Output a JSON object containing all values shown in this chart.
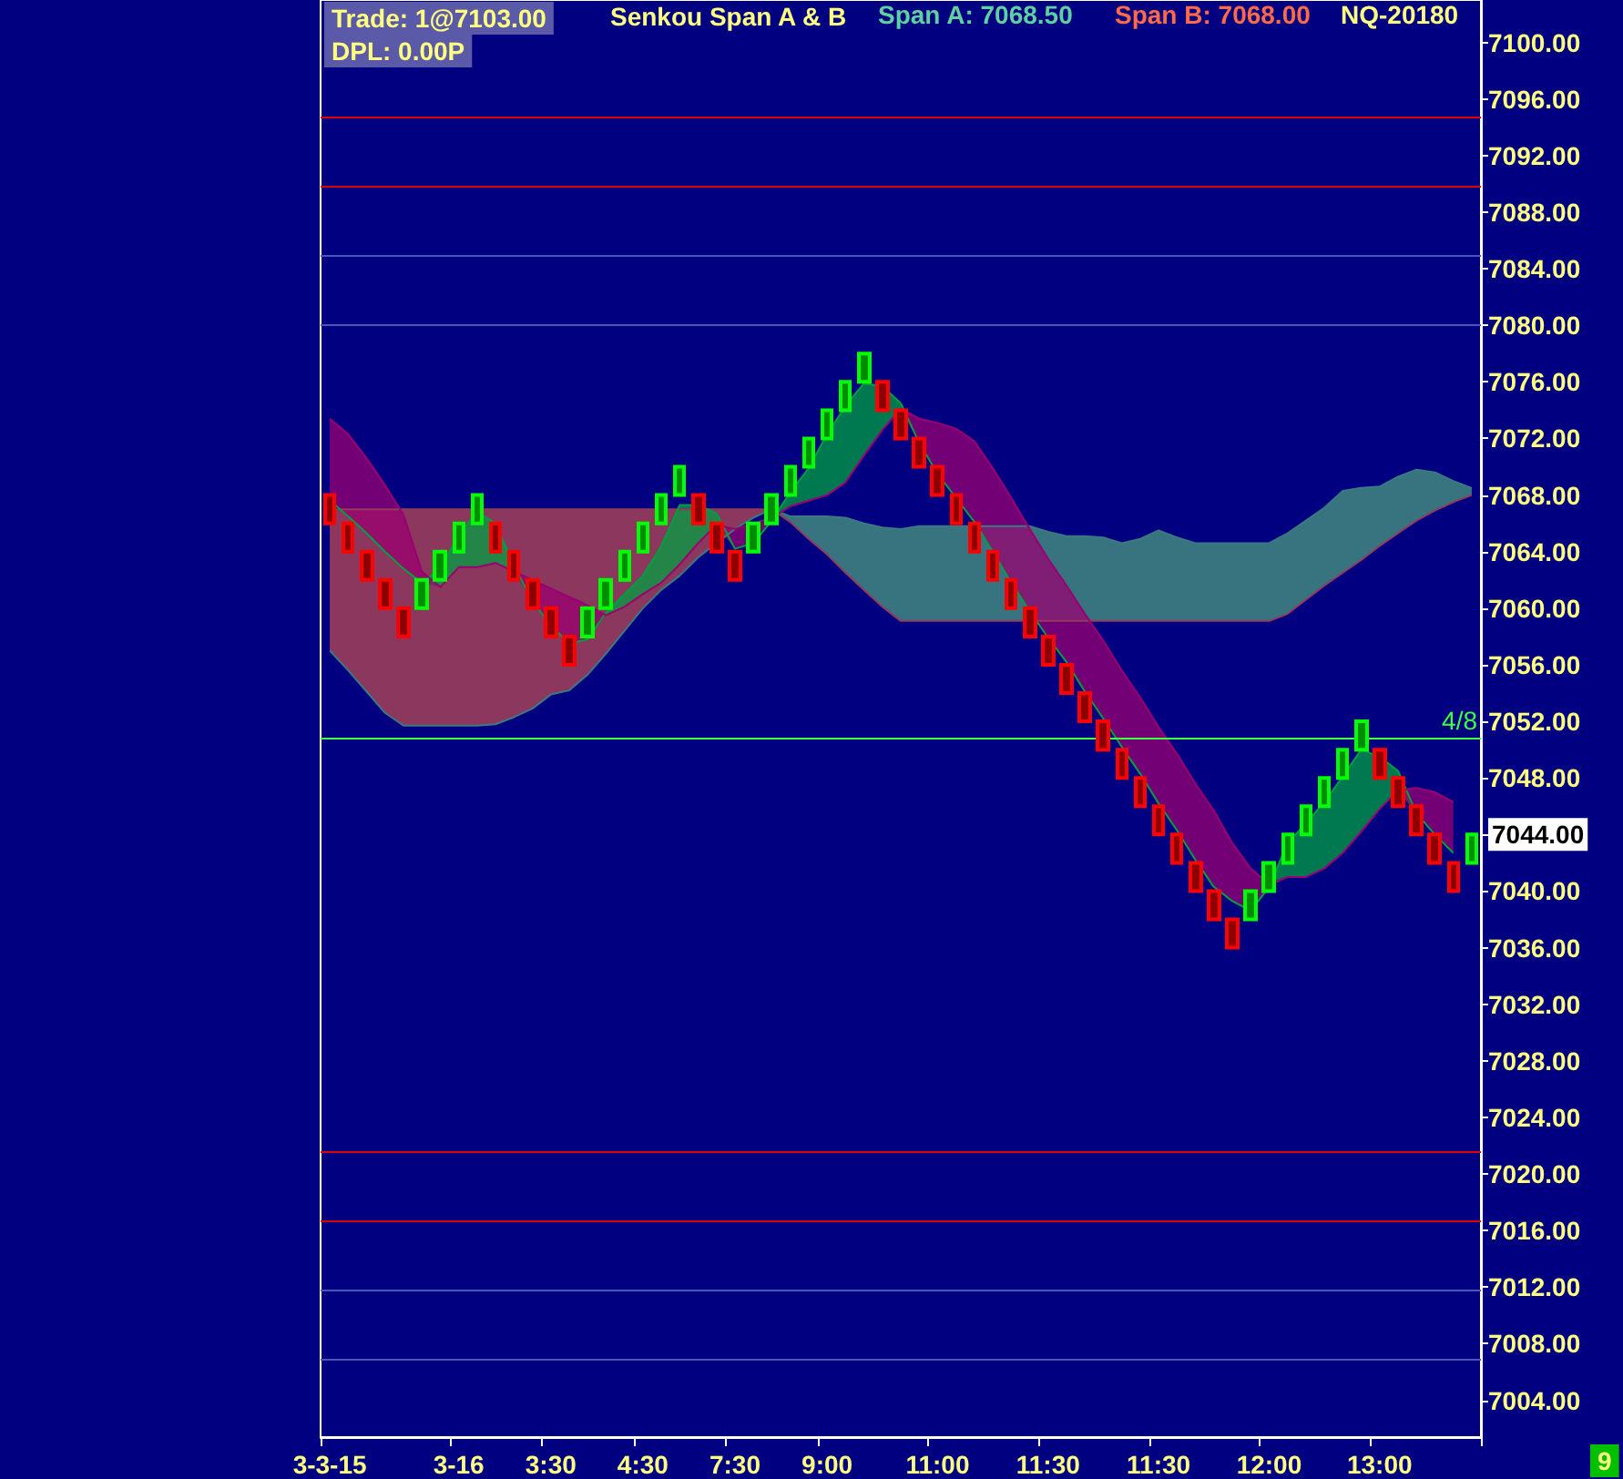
{
  "chart_data": {
    "type": "candlestick",
    "title": "Senkou Span A & B",
    "annotations": [
      "Trade: 1@7103.00",
      "DPL: 0.00P",
      "Span A: 7068.50",
      "Span B: 7068.00",
      "NQ-20180",
      "9",
      {
        "text": "4/8",
        "y": 7050.8
      }
    ],
    "categories": [
      "3-3-15",
      null,
      null,
      null,
      null,
      null,
      null,
      "3-16",
      null,
      null,
      null,
      null,
      "3:30",
      null,
      null,
      null,
      null,
      "4:30",
      null,
      null,
      null,
      null,
      "7:30",
      null,
      null,
      null,
      null,
      "9:00",
      null,
      null,
      null,
      null,
      null,
      "11:00",
      null,
      null,
      null,
      null,
      null,
      "11:30",
      null,
      null,
      null,
      null,
      null,
      "11:30",
      null,
      null,
      null,
      null,
      null,
      "12:00",
      null,
      null,
      null,
      null,
      null,
      "13:00",
      null,
      null,
      null,
      null,
      null
    ],
    "ohlc": [
      [
        7068,
        7068,
        7066,
        7066
      ],
      [
        7066,
        7066,
        7064,
        7064
      ],
      [
        7064,
        7064,
        7062,
        7062
      ],
      [
        7062,
        7062,
        7060,
        7060
      ],
      [
        7060,
        7060,
        7058,
        7058
      ],
      [
        7060,
        7062,
        7060,
        7062
      ],
      [
        7062,
        7064,
        7062,
        7064
      ],
      [
        7064,
        7066,
        7064,
        7066
      ],
      [
        7066,
        7068,
        7066,
        7068
      ],
      [
        7066,
        7066,
        7064,
        7064
      ],
      [
        7064,
        7064,
        7062,
        7062
      ],
      [
        7062,
        7062,
        7060,
        7060
      ],
      [
        7060,
        7060,
        7058,
        7058
      ],
      [
        7058,
        7058,
        7056,
        7056
      ],
      [
        7058,
        7060,
        7058,
        7060
      ],
      [
        7060,
        7062,
        7060,
        7062
      ],
      [
        7062,
        7064,
        7062,
        7064
      ],
      [
        7064,
        7066,
        7064,
        7066
      ],
      [
        7066,
        7068,
        7066,
        7068
      ],
      [
        7068,
        7070,
        7068,
        7070
      ],
      [
        7068,
        7068,
        7066,
        7066
      ],
      [
        7066,
        7066,
        7064,
        7064
      ],
      [
        7064,
        7064,
        7062,
        7062
      ],
      [
        7064,
        7066,
        7064,
        7066
      ],
      [
        7066,
        7068,
        7066,
        7068
      ],
      [
        7068,
        7070,
        7068,
        7070
      ],
      [
        7070,
        7072,
        7070,
        7072
      ],
      [
        7072,
        7074,
        7072,
        7074
      ],
      [
        7074,
        7076,
        7074,
        7076
      ],
      [
        7076,
        7078,
        7076,
        7078
      ],
      [
        7076,
        7076,
        7074,
        7074
      ],
      [
        7074,
        7074,
        7072,
        7072
      ],
      [
        7072,
        7072,
        7070,
        7070
      ],
      [
        7070,
        7070,
        7068,
        7068
      ],
      [
        7068,
        7068,
        7066,
        7066
      ],
      [
        7066,
        7066,
        7064,
        7064
      ],
      [
        7064,
        7064,
        7062,
        7062
      ],
      [
        7062,
        7062,
        7060,
        7060
      ],
      [
        7060,
        7060,
        7058,
        7058
      ],
      [
        7058,
        7058,
        7056,
        7056
      ],
      [
        7056,
        7056,
        7054,
        7054
      ],
      [
        7054,
        7054,
        7052,
        7052
      ],
      [
        7052,
        7052,
        7050,
        7050
      ],
      [
        7050,
        7050,
        7048,
        7048
      ],
      [
        7048,
        7048,
        7046,
        7046
      ],
      [
        7046,
        7046,
        7044,
        7044
      ],
      [
        7044,
        7044,
        7042,
        7042
      ],
      [
        7042,
        7042,
        7040,
        7040
      ],
      [
        7040,
        7040,
        7038,
        7038
      ],
      [
        7038,
        7038,
        7036,
        7036
      ],
      [
        7038,
        7040,
        7038,
        7040
      ],
      [
        7040,
        7042,
        7040,
        7042
      ],
      [
        7042,
        7044,
        7042,
        7044
      ],
      [
        7044,
        7046,
        7044,
        7046
      ],
      [
        7046,
        7048,
        7046,
        7048
      ],
      [
        7048,
        7050,
        7048,
        7050
      ],
      [
        7050,
        7052,
        7050,
        7052
      ],
      [
        7050,
        7050,
        7048,
        7048
      ],
      [
        7048,
        7048,
        7046,
        7046
      ],
      [
        7046,
        7046,
        7044,
        7044
      ],
      [
        7044,
        7044,
        7042,
        7042
      ],
      [
        7042,
        7042,
        7040,
        7040
      ],
      [
        7042,
        7044,
        7042,
        7044
      ]
    ],
    "colors": [
      "#ff0000",
      "#ff0000",
      "#ff0000",
      "#ff0000",
      "#ff0000",
      "#00ff00",
      "#00ff00",
      "#00ff00",
      "#00ff00",
      "#ff0000",
      "#ff0000",
      "#ff0000",
      "#ff0000",
      "#ff0000",
      "#00ff00",
      "#00ff00",
      "#00ff00",
      "#00ff00",
      "#00ff00",
      "#00ff00",
      "#ff0000",
      "#ff0000",
      "#ff0000",
      "#00ff00",
      "#00ff00",
      "#00ff00",
      "#00ff00",
      "#00ff00",
      "#00ff00",
      "#00ff00",
      "#ff0000",
      "#ff0000",
      "#ff0000",
      "#ff0000",
      "#ff0000",
      "#ff0000",
      "#ff0000",
      "#ff0000",
      "#ff0000",
      "#ff0000",
      "#ff0000",
      "#ff0000",
      "#ff0000",
      "#ff0000",
      "#ff0000",
      "#ff0000",
      "#ff0000",
      "#ff0000",
      "#ff0000",
      "#ff0000",
      "#00ff00",
      "#00ff00",
      "#00ff00",
      "#00ff00",
      "#00ff00",
      "#00ff00",
      "#00ff00",
      "#ff0000",
      "#ff0000",
      "#ff0000",
      "#ff0000",
      "#ff0000",
      "#00ff00"
    ],
    "series": [
      {
        "type": "area",
        "color": "#3a7a80",
        "values": [
          7057.0,
          7055.6,
          7054.1,
          7052.6,
          7051.7,
          7051.7,
          7051.7,
          7051.7,
          7051.7,
          7051.8,
          7052.3,
          7052.9,
          7053.9,
          7054.2,
          7055.3,
          7056.8,
          7058.4,
          7060.0,
          7061.3,
          7062.3,
          7063.6,
          7064.6,
          7065.6,
          7066.4,
          7067.0,
          7066.5,
          7066.5,
          7066.5,
          7066.4,
          7066.0,
          7065.7,
          7065.6,
          7065.8,
          7065.8,
          7065.8,
          7065.8,
          7065.8,
          7065.8,
          7065.8,
          7065.4,
          7065.1,
          7065.1,
          7065.0,
          7064.6,
          7064.9,
          7065.5,
          7065.0,
          7064.6,
          7064.6,
          7064.6,
          7064.6,
          7064.6,
          7065.3,
          7066.2,
          7067.1,
          7068.3,
          7068.5,
          7068.6,
          7069.3,
          7069.8,
          7069.6,
          7069.0,
          7068.5
        ]
      },
      {
        "type": "area",
        "color": "#943a5c",
        "values": [
          7067,
          7067,
          7067,
          7067,
          7067,
          7067,
          7067,
          7067,
          7067,
          7067,
          7067,
          7067,
          7067,
          7067,
          7067,
          7067,
          7067,
          7067,
          7067,
          7067,
          7067,
          7067,
          7067,
          7067,
          7067,
          7066.1,
          7064.9,
          7063.8,
          7062.5,
          7061.3,
          7060.1,
          7059.1,
          7059.1,
          7059.1,
          7059.1,
          7059.1,
          7059.1,
          7059.1,
          7059.1,
          7059.1,
          7059.1,
          7059.1,
          7059.1,
          7059.1,
          7059.1,
          7059.1,
          7059.1,
          7059.1,
          7059.1,
          7059.1,
          7059.1,
          7059.1,
          7059.6,
          7060.6,
          7061.6,
          7062.5,
          7063.4,
          7064.4,
          7065.3,
          7066.2,
          7066.9,
          7067.5,
          7068.0
        ]
      },
      {
        "type": "area",
        "color": "#00a040",
        "values": [
          7067.6,
          7066.5,
          7065.3,
          7064.0,
          7062.8,
          7061.8,
          7062.8,
          7065.2,
          7066.8,
          7066.0,
          7063.0,
          7060.5,
          7058.8,
          7057.5,
          7057.8,
          7059.7,
          7061.0,
          7062.3,
          7064.4,
          7067.3,
          7067.3,
          7066.7,
          7064.2,
          7064.6,
          7066.2,
          7068.2,
          7069.9,
          7072.3,
          7074.3,
          7075.9,
          7075.7,
          7074.5,
          7071.7,
          7069.5,
          7067.8,
          7066.1,
          7064.0,
          7061.8,
          7059.8,
          7057.9,
          7056.2,
          7054.1,
          7052.2,
          7050.2,
          7048.3,
          7046.2,
          7044.3,
          7042.2,
          7040.3,
          7039.3,
          7038.6,
          7040.3,
          7043.4,
          7044.8,
          7046.3,
          7048.1,
          7050.0,
          7049.5,
          7048.5,
          7045.5,
          7044.0,
          7042.7,
          null
        ]
      },
      {
        "type": "area",
        "color": "#990070",
        "values": [
          7073.4,
          7072.3,
          7070.6,
          7068.7,
          7066.6,
          7062.6,
          7061.5,
          7062.9,
          7062.9,
          7063.2,
          7062.6,
          7062.0,
          7061.4,
          7060.8,
          7060.2,
          7059.5,
          7060.1,
          7061.0,
          7061.8,
          7063.1,
          7064.6,
          7065.9,
          7065.6,
          7066.0,
          7066.4,
          7067.2,
          7067.6,
          7068.0,
          7068.9,
          7070.8,
          7072.6,
          7074.1,
          7073.4,
          7073.1,
          7072.7,
          7071.8,
          7069.9,
          7067.8,
          7065.6,
          7063.5,
          7061.6,
          7059.6,
          7057.7,
          7055.6,
          7053.7,
          7051.6,
          7049.7,
          7047.6,
          7045.7,
          7043.4,
          7041.6,
          7040.5,
          7041.0,
          7041.0,
          7041.6,
          7042.7,
          7044.2,
          7045.8,
          7047.1,
          7047.3,
          7047.0,
          7046.3,
          null
        ]
      }
    ],
    "ylim": [
      7001.4,
      7103
    ],
    "yticks": [
      {
        "value": 7004,
        "label": "7004.00"
      },
      {
        "value": 7008,
        "label": "7008.00"
      },
      {
        "value": 7012,
        "label": "7012.00"
      },
      {
        "value": 7016,
        "label": "7016.00"
      },
      {
        "value": 7020,
        "label": "7020.00"
      },
      {
        "value": 7024,
        "label": "7024.00"
      },
      {
        "value": 7028,
        "label": "7028.00"
      },
      {
        "value": 7032,
        "label": "7032.00"
      },
      {
        "value": 7036,
        "label": "7036.00"
      },
      {
        "value": 7040,
        "label": "7040.00"
      },
      {
        "value": 7044,
        "label": "7044.00"
      },
      {
        "value": 7048,
        "label": "7048.00"
      },
      {
        "value": 7052,
        "label": "7052.00"
      },
      {
        "value": 7056,
        "label": "7056.00"
      },
      {
        "value": 7060,
        "label": "7060.00"
      },
      {
        "value": 7064,
        "label": "7064.00"
      },
      {
        "value": 7068,
        "label": "7068.00"
      },
      {
        "value": 7072,
        "label": "7072.00"
      },
      {
        "value": 7076,
        "label": "7076.00"
      },
      {
        "value": 7080,
        "label": "7080.00"
      },
      {
        "value": 7084,
        "label": "7084.00"
      },
      {
        "value": 7088,
        "label": "7088.00"
      },
      {
        "value": 7092,
        "label": "7092.00"
      },
      {
        "value": 7096,
        "label": "7096.00"
      },
      {
        "value": 7100,
        "label": "7100.00"
      }
    ],
    "ref_lines": [
      {
        "axis": "y",
        "value": 7094.7,
        "color": "#e00000"
      },
      {
        "axis": "y",
        "value": 7089.8,
        "color": "#e00000"
      },
      {
        "axis": "y",
        "value": 7084.9,
        "color": "#4858b8"
      },
      {
        "axis": "y",
        "value": 7080.0,
        "color": "#4858b8"
      },
      {
        "axis": "y",
        "value": 7050.8,
        "color": "#40ff40"
      },
      {
        "axis": "y",
        "value": 7021.6,
        "color": "#e00000"
      },
      {
        "axis": "y",
        "value": 7016.7,
        "color": "#e00000"
      },
      {
        "axis": "y",
        "value": 7011.8,
        "color": "#4858b8"
      },
      {
        "axis": "y",
        "value": 7006.9,
        "color": "#4858b8"
      }
    ],
    "grid": false,
    "marker": "none",
    "line_style": "solid"
  }
}
